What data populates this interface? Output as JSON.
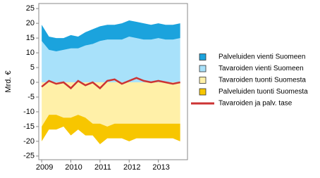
{
  "chart_data": {
    "type": "area",
    "ylabel": "Mrd. €",
    "x": [
      2009,
      2009.25,
      2009.5,
      2009.75,
      2010,
      2010.25,
      2010.5,
      2010.75,
      2011,
      2011.25,
      2011.5,
      2011.75,
      2012,
      2012.25,
      2012.5,
      2012.75,
      2013,
      2013.25,
      2013.5,
      2013.75
    ],
    "xlim": [
      2008.9,
      2014.0
    ],
    "xticks": [
      2009,
      2010,
      2011,
      2012,
      2013
    ],
    "ylim": [
      -26,
      26
    ],
    "yticks": [
      25,
      20,
      15,
      10,
      5,
      0,
      -5,
      -10,
      -15,
      -20,
      -25
    ],
    "series": [
      {
        "name": "Palveluiden vienti Suomeen",
        "type": "area",
        "color": "#1ba3dd",
        "values": [
          5.5,
          4.5,
          4.5,
          4,
          4.5,
          4,
          4.5,
          5,
          5,
          5,
          5,
          5.5,
          5.5,
          5.5,
          5.5,
          5,
          5,
          5,
          5,
          5
        ]
      },
      {
        "name": "Tavaroiden vienti Suomeen",
        "type": "area",
        "color": "#a8e1fa",
        "values": [
          14,
          11,
          10.5,
          11,
          11.5,
          11.5,
          12.5,
          13,
          14,
          14.5,
          14.5,
          14.5,
          15.5,
          15,
          14.5,
          14.5,
          15,
          14.5,
          14.5,
          15
        ]
      },
      {
        "name": "Tavaroiden tuonti Suomesta",
        "type": "area",
        "color": "#fff0a8",
        "values": [
          -15,
          -11,
          -11,
          -12,
          -12,
          -11,
          -12,
          -14,
          -14,
          -15,
          -14,
          -14,
          -14,
          -14,
          -14,
          -14,
          -14,
          -14,
          -14,
          -14
        ]
      },
      {
        "name": "Palveluiden tuonti Suomesta",
        "type": "area",
        "color": "#f7c600",
        "values": [
          -5,
          -5,
          -5,
          -3,
          -6,
          -5,
          -6,
          -4,
          -7,
          -4,
          -5,
          -5,
          -6,
          -5,
          -5,
          -5,
          -5,
          -5,
          -5,
          -6
        ]
      },
      {
        "name": "Tavaroiden ja palv. tase",
        "type": "line",
        "color": "#cc3333",
        "values": [
          -1.5,
          0.5,
          -0.5,
          0,
          -2,
          0.5,
          -1,
          0,
          -2,
          0.5,
          1,
          -0.5,
          0.5,
          1.5,
          0.5,
          0,
          0.5,
          0,
          -0.5,
          0
        ]
      }
    ]
  }
}
